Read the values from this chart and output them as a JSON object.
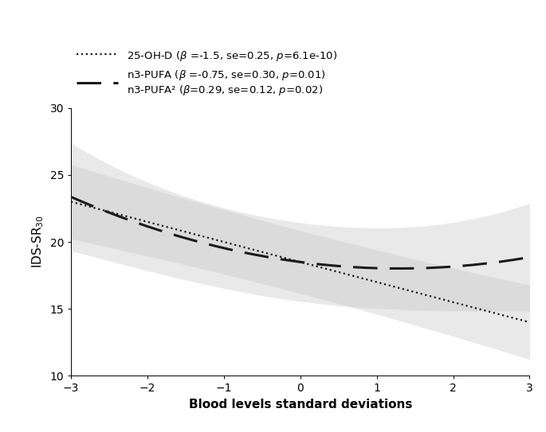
{
  "title": "",
  "xlabel": "Blood levels standard deviations",
  "ylabel": "IDS-SR$_{30}$",
  "xlim": [
    -3,
    3
  ],
  "ylim": [
    10,
    30
  ],
  "yticks": [
    10,
    15,
    20,
    25,
    30
  ],
  "xticks": [
    -3,
    -2,
    -1,
    0,
    1,
    2,
    3
  ],
  "intercept": 18.5,
  "beta_vitd": -1.5,
  "beta_pufa": -0.75,
  "beta_pufa2": 0.29,
  "line_color": "#1a1a1a",
  "shading_color": "#c8c8c8",
  "shading_alpha": 0.4,
  "background_color": "#ffffff",
  "vitd_se_intercept": 1.2,
  "vitd_se_slope": 0.25,
  "pufa_se_intercept": 1.5,
  "pufa_se_linear": 0.3,
  "pufa_se_quad": 0.12,
  "legend1": "25-OH-D (β =-1.5, se=0.25, ",
  "legend1_p": "p",
  "legend1_end": "=6.1e-10)",
  "legend2a": "n3-PUFA (β =-0.75, se=0.30, ",
  "legend2a_p": "p",
  "legend2a_end": "=0.01)",
  "legend2b": "n3-PUFA² (β=0.29, se=0.12, ",
  "legend2b_p": "p",
  "legend2b_end": "=0.02)"
}
